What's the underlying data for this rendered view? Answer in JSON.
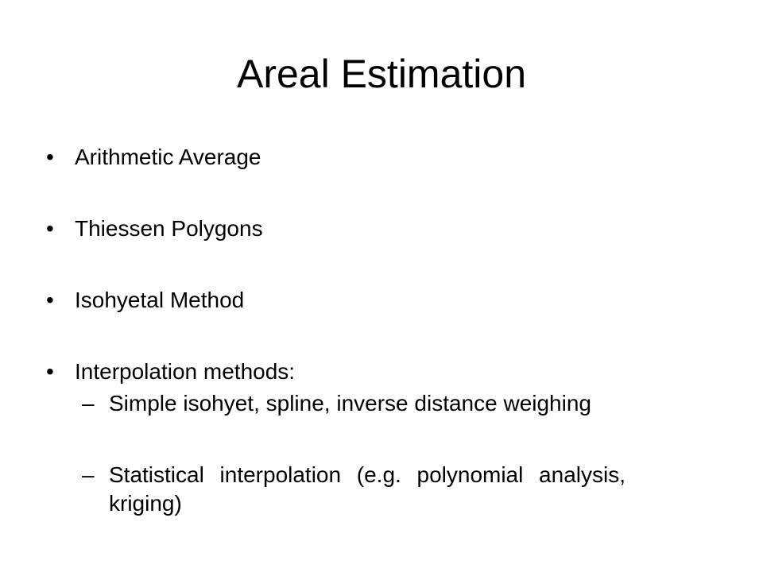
{
  "slide": {
    "title": "Areal Estimation",
    "bullets": [
      "Arithmetic Average",
      "Thiessen Polygons",
      "Isohyetal Method",
      "Interpolation methods:"
    ],
    "bullet_glyph": "•",
    "sub_glyph": "–",
    "sub_bullets": [
      "Simple isohyet, spline, inverse distance weighing",
      "Statistical interpolation (e.g. polynomial analysis, kriging)"
    ]
  }
}
